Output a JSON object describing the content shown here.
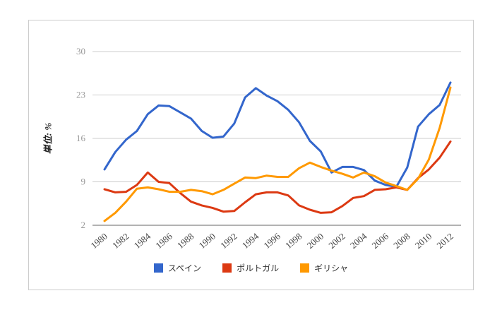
{
  "chart_data": {
    "type": "line",
    "title": "",
    "ylabel": "単位: %",
    "xlabel": "",
    "grid": true,
    "legend_position": "bottom",
    "ylim": [
      2,
      30
    ],
    "y_ticks": [
      2,
      9,
      16,
      23,
      30
    ],
    "x": [
      1980,
      1981,
      1982,
      1983,
      1984,
      1985,
      1986,
      1987,
      1988,
      1989,
      1990,
      1991,
      1992,
      1993,
      1994,
      1995,
      1996,
      1997,
      1998,
      1999,
      2000,
      2001,
      2002,
      2003,
      2004,
      2005,
      2006,
      2007,
      2008,
      2009,
      2010,
      2011,
      2012
    ],
    "x_tick_labels": [
      "1980",
      "1982",
      "1984",
      "1986",
      "1988",
      "1990",
      "1992",
      "1994",
      "1996",
      "1998",
      "2000",
      "2002",
      "2004",
      "2006",
      "2008",
      "2010",
      "2012"
    ],
    "series": [
      {
        "name": "スペイン",
        "key": "spain",
        "color": "#3366cc",
        "values": [
          11.0,
          13.8,
          15.8,
          17.2,
          19.9,
          21.3,
          21.2,
          20.2,
          19.2,
          17.2,
          16.1,
          16.3,
          18.4,
          22.6,
          24.1,
          22.9,
          22.0,
          20.6,
          18.6,
          15.6,
          13.9,
          10.5,
          11.4,
          11.4,
          10.9,
          9.2,
          8.5,
          8.2,
          11.3,
          17.9,
          19.9,
          21.4,
          25.0
        ]
      },
      {
        "name": "ポルトガル",
        "key": "portugal",
        "color": "#dc3912",
        "values": [
          7.8,
          7.3,
          7.4,
          8.5,
          10.5,
          9.0,
          8.8,
          7.2,
          5.8,
          5.2,
          4.8,
          4.2,
          4.3,
          5.7,
          7.0,
          7.3,
          7.3,
          6.8,
          5.2,
          4.5,
          4.0,
          4.1,
          5.1,
          6.4,
          6.7,
          7.7,
          7.8,
          8.1,
          7.7,
          9.6,
          11.0,
          12.9,
          15.5
        ]
      },
      {
        "name": "ギリシャ",
        "key": "greece",
        "color": "#ff9900",
        "values": [
          2.7,
          4.0,
          5.8,
          7.9,
          8.1,
          7.8,
          7.4,
          7.4,
          7.7,
          7.5,
          7.0,
          7.7,
          8.7,
          9.7,
          9.6,
          10.0,
          9.8,
          9.8,
          11.2,
          12.1,
          11.4,
          10.8,
          10.3,
          9.7,
          10.5,
          9.9,
          8.9,
          8.3,
          7.7,
          9.5,
          12.6,
          17.7,
          24.2
        ]
      }
    ]
  }
}
